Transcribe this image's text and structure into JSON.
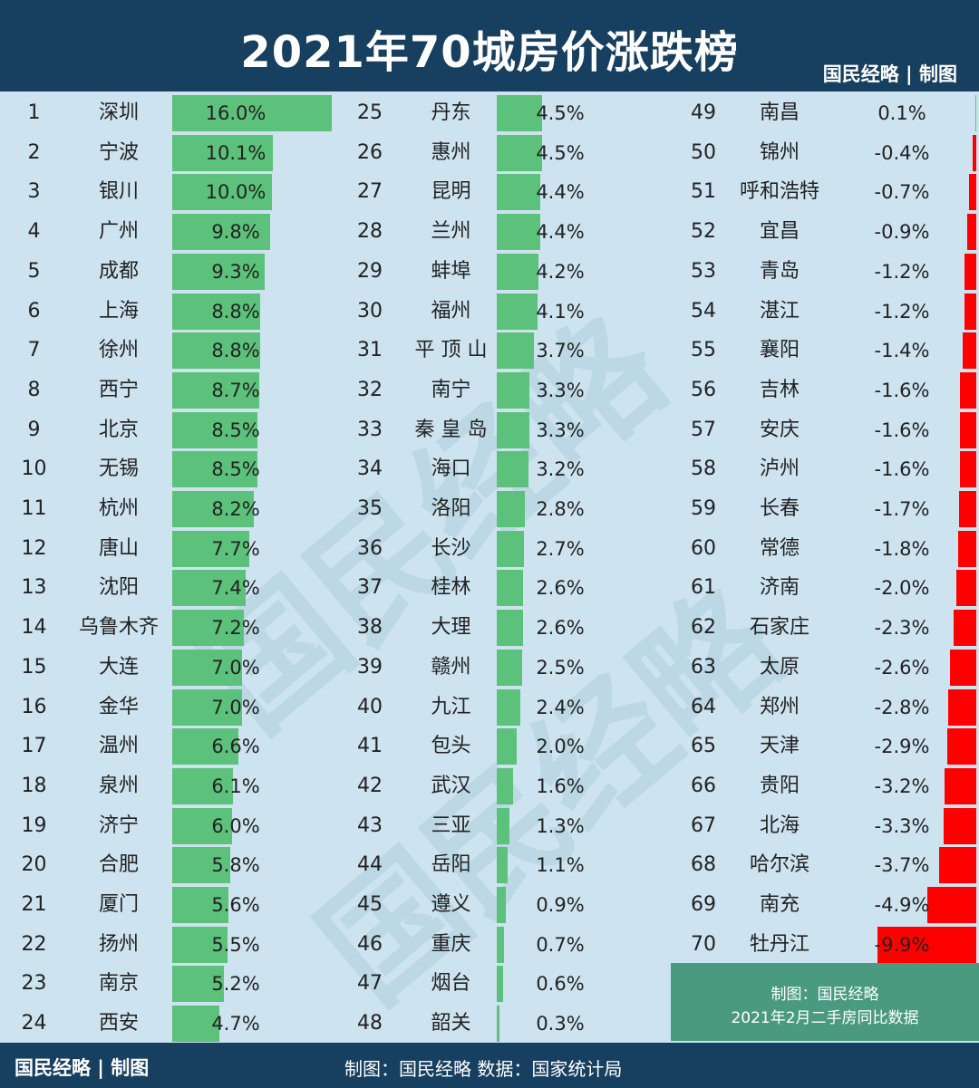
{
  "header": {
    "title": "2021年70城房价涨跌榜",
    "brand": "国民经略 | 制图"
  },
  "watermark": "国民经略",
  "footer": {
    "brand": "国民经略 | 制图",
    "source": "制图：国民经略  数据：国家统计局"
  },
  "note": {
    "line1": "制图：国民经略",
    "line2": "2021年2月二手房同比数据"
  },
  "colors": {
    "header_bg": "#173f5f",
    "background": "#cde3f0",
    "positive_bar": "#5cc17a",
    "negative_bar": "#ff0000",
    "note_bg": "#4a9a80"
  },
  "chart_data": {
    "type": "bar",
    "orientation": "horizontal",
    "unit": "%",
    "rows": [
      {
        "rank": "1",
        "city": "深圳",
        "value": 16.0,
        "label": "16.0%"
      },
      {
        "rank": "2",
        "city": "宁波",
        "value": 10.1,
        "label": "10.1%"
      },
      {
        "rank": "3",
        "city": "银川",
        "value": 10.0,
        "label": "10.0%"
      },
      {
        "rank": "4",
        "city": "广州",
        "value": 9.8,
        "label": "9.8%"
      },
      {
        "rank": "5",
        "city": "成都",
        "value": 9.3,
        "label": "9.3%"
      },
      {
        "rank": "6",
        "city": "上海",
        "value": 8.8,
        "label": "8.8%"
      },
      {
        "rank": "7",
        "city": "徐州",
        "value": 8.8,
        "label": "8.8%"
      },
      {
        "rank": "8",
        "city": "西宁",
        "value": 8.7,
        "label": "8.7%"
      },
      {
        "rank": "9",
        "city": "北京",
        "value": 8.5,
        "label": "8.5%"
      },
      {
        "rank": "10",
        "city": "无锡",
        "value": 8.5,
        "label": "8.5%"
      },
      {
        "rank": "11",
        "city": "杭州",
        "value": 8.2,
        "label": "8.2%"
      },
      {
        "rank": "12",
        "city": "唐山",
        "value": 7.7,
        "label": "7.7%"
      },
      {
        "rank": "13",
        "city": "沈阳",
        "value": 7.4,
        "label": "7.4%"
      },
      {
        "rank": "14",
        "city": "乌鲁木齐",
        "value": 7.2,
        "label": "7.2%"
      },
      {
        "rank": "15",
        "city": "大连",
        "value": 7.0,
        "label": "7.0%"
      },
      {
        "rank": "16",
        "city": "金华",
        "value": 7.0,
        "label": "7.0%"
      },
      {
        "rank": "17",
        "city": "温州",
        "value": 6.6,
        "label": "6.6%"
      },
      {
        "rank": "18",
        "city": "泉州",
        "value": 6.1,
        "label": "6.1%"
      },
      {
        "rank": "19",
        "city": "济宁",
        "value": 6.0,
        "label": "6.0%"
      },
      {
        "rank": "20",
        "city": "合肥",
        "value": 5.8,
        "label": "5.8%"
      },
      {
        "rank": "21",
        "city": "厦门",
        "value": 5.6,
        "label": "5.6%"
      },
      {
        "rank": "22",
        "city": "扬州",
        "value": 5.5,
        "label": "5.5%"
      },
      {
        "rank": "23",
        "city": "南京",
        "value": 5.2,
        "label": "5.2%"
      },
      {
        "rank": "24",
        "city": "西安",
        "value": 4.7,
        "label": "4.7%"
      },
      {
        "rank": "25",
        "city": "丹东",
        "value": 4.5,
        "label": "4.5%"
      },
      {
        "rank": "26",
        "city": "惠州",
        "value": 4.5,
        "label": "4.5%"
      },
      {
        "rank": "27",
        "city": "昆明",
        "value": 4.4,
        "label": "4.4%"
      },
      {
        "rank": "28",
        "city": "兰州",
        "value": 4.4,
        "label": "4.4%"
      },
      {
        "rank": "29",
        "city": "蚌埠",
        "value": 4.2,
        "label": "4.2%"
      },
      {
        "rank": "30",
        "city": "福州",
        "value": 4.1,
        "label": "4.1%"
      },
      {
        "rank": "31",
        "city": "平 顶 山",
        "value": 3.7,
        "label": "3.7%"
      },
      {
        "rank": "32",
        "city": "南宁",
        "value": 3.3,
        "label": "3.3%"
      },
      {
        "rank": "33",
        "city": "秦 皇 岛",
        "value": 3.3,
        "label": "3.3%"
      },
      {
        "rank": "34",
        "city": "海口",
        "value": 3.2,
        "label": "3.2%"
      },
      {
        "rank": "35",
        "city": "洛阳",
        "value": 2.8,
        "label": "2.8%"
      },
      {
        "rank": "36",
        "city": "长沙",
        "value": 2.7,
        "label": "2.7%"
      },
      {
        "rank": "37",
        "city": "桂林",
        "value": 2.6,
        "label": "2.6%"
      },
      {
        "rank": "38",
        "city": "大理",
        "value": 2.6,
        "label": "2.6%"
      },
      {
        "rank": "39",
        "city": "赣州",
        "value": 2.5,
        "label": "2.5%"
      },
      {
        "rank": "40",
        "city": "九江",
        "value": 2.4,
        "label": "2.4%"
      },
      {
        "rank": "41",
        "city": "包头",
        "value": 2.0,
        "label": "2.0%"
      },
      {
        "rank": "42",
        "city": "武汉",
        "value": 1.6,
        "label": "1.6%"
      },
      {
        "rank": "43",
        "city": "三亚",
        "value": 1.3,
        "label": "1.3%"
      },
      {
        "rank": "44",
        "city": "岳阳",
        "value": 1.1,
        "label": "1.1%"
      },
      {
        "rank": "45",
        "city": "遵义",
        "value": 0.9,
        "label": "0.9%"
      },
      {
        "rank": "46",
        "city": "重庆",
        "value": 0.7,
        "label": "0.7%"
      },
      {
        "rank": "47",
        "city": "烟台",
        "value": 0.6,
        "label": "0.6%"
      },
      {
        "rank": "48",
        "city": "韶关",
        "value": 0.3,
        "label": "0.3%"
      },
      {
        "rank": "49",
        "city": "南昌",
        "value": 0.1,
        "label": "0.1%"
      },
      {
        "rank": "50",
        "city": "锦州",
        "value": -0.4,
        "label": "-0.4%"
      },
      {
        "rank": "51",
        "city": "呼和浩特",
        "value": -0.7,
        "label": "-0.7%"
      },
      {
        "rank": "52",
        "city": "宜昌",
        "value": -0.9,
        "label": "-0.9%"
      },
      {
        "rank": "53",
        "city": "青岛",
        "value": -1.2,
        "label": "-1.2%"
      },
      {
        "rank": "54",
        "city": "湛江",
        "value": -1.2,
        "label": "-1.2%"
      },
      {
        "rank": "55",
        "city": "襄阳",
        "value": -1.4,
        "label": "-1.4%"
      },
      {
        "rank": "56",
        "city": "吉林",
        "value": -1.6,
        "label": "-1.6%"
      },
      {
        "rank": "57",
        "city": "安庆",
        "value": -1.6,
        "label": "-1.6%"
      },
      {
        "rank": "58",
        "city": "泸州",
        "value": -1.6,
        "label": "-1.6%"
      },
      {
        "rank": "59",
        "city": "长春",
        "value": -1.7,
        "label": "-1.7%"
      },
      {
        "rank": "60",
        "city": "常德",
        "value": -1.8,
        "label": "-1.8%"
      },
      {
        "rank": "61",
        "city": "济南",
        "value": -2.0,
        "label": "-2.0%"
      },
      {
        "rank": "62",
        "city": "石家庄",
        "value": -2.3,
        "label": "-2.3%"
      },
      {
        "rank": "63",
        "city": "太原",
        "value": -2.6,
        "label": "-2.6%"
      },
      {
        "rank": "64",
        "city": "郑州",
        "value": -2.8,
        "label": "-2.8%"
      },
      {
        "rank": "65",
        "city": "天津",
        "value": -2.9,
        "label": "-2.9%"
      },
      {
        "rank": "66",
        "city": "贵阳",
        "value": -3.2,
        "label": "-3.2%"
      },
      {
        "rank": "67",
        "city": "北海",
        "value": -3.3,
        "label": "-3.3%"
      },
      {
        "rank": "68",
        "city": "哈尔滨",
        "value": -3.7,
        "label": "-3.7%"
      },
      {
        "rank": "69",
        "city": "南充",
        "value": -4.9,
        "label": "-4.9%"
      },
      {
        "rank": "70",
        "city": "牡丹江",
        "value": -9.9,
        "label": "-9.9%"
      }
    ]
  }
}
